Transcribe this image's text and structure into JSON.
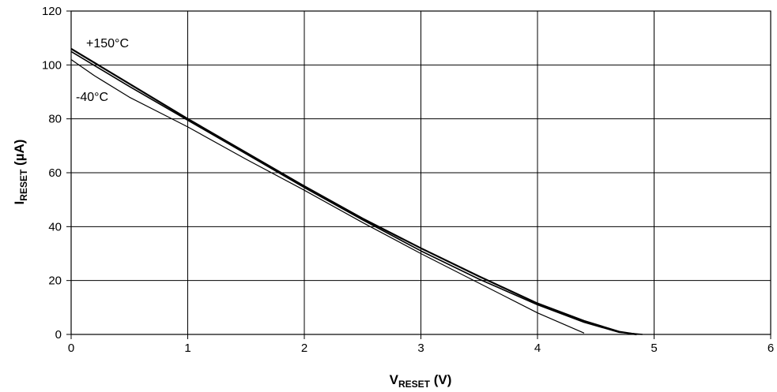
{
  "chart_data": {
    "type": "line",
    "xlabel": {
      "main": "V",
      "sub": "RESET",
      "unit": " (V)"
    },
    "ylabel": {
      "main": "I",
      "sub": "RESET",
      "unit": " (µA)"
    },
    "xlim": [
      0,
      6
    ],
    "ylim": [
      0,
      120
    ],
    "xticks": [
      "0",
      "1",
      "2",
      "3",
      "4",
      "5",
      "6"
    ],
    "yticks": [
      "0",
      "20",
      "40",
      "60",
      "80",
      "100",
      "120"
    ],
    "grid": true,
    "legend": "none",
    "series": [
      {
        "name": "+150°C",
        "x": [
          0,
          0.5,
          1.0,
          1.5,
          2.0,
          2.5,
          3.0,
          3.5,
          4.0,
          4.4,
          4.7,
          4.85
        ],
        "y": [
          106,
          93,
          80,
          67.5,
          55,
          43,
          32,
          21.5,
          11.5,
          5,
          1,
          0
        ]
      },
      {
        "x": [
          0,
          0.5,
          1.0,
          1.5,
          2.0,
          2.5,
          3.0,
          3.5,
          4.0,
          4.4,
          4.7,
          4.9
        ],
        "y": [
          105,
          92,
          79.5,
          67,
          54.5,
          42.5,
          31,
          20.5,
          11,
          4.5,
          0.8,
          0
        ]
      },
      {
        "name": "-40°C",
        "x": [
          0,
          0.2,
          0.5,
          1.0,
          1.5,
          2.0,
          2.5,
          3.0,
          3.5,
          4.0,
          4.4
        ],
        "y": [
          102,
          96,
          88,
          77,
          65,
          53.5,
          41.5,
          30,
          19,
          8,
          0.5
        ]
      }
    ],
    "annotations": [
      {
        "text": "+150°C",
        "series": 0
      },
      {
        "text": "-40°C",
        "series": 2
      }
    ]
  }
}
